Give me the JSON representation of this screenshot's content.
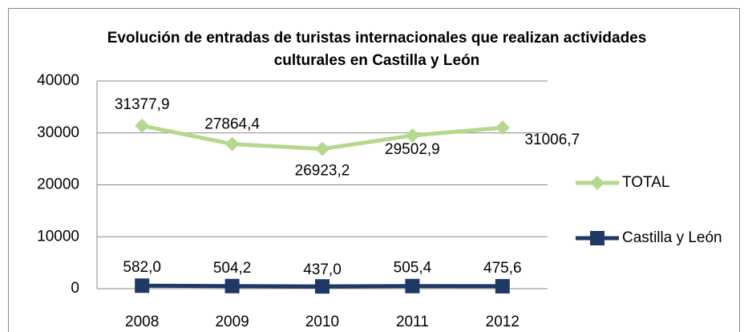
{
  "chart_data": {
    "type": "line",
    "title": "Evolución de entradas de turistas internacionales que realizan actividades culturales en Castilla y León",
    "categories": [
      "2008",
      "2009",
      "2010",
      "2011",
      "2012"
    ],
    "series": [
      {
        "name": "TOTAL",
        "color": "#b5d98c",
        "marker": "diamond",
        "values": [
          31377.9,
          27864.4,
          26923.2,
          29502.9,
          31006.7
        ],
        "value_labels": [
          "31377,9",
          "27864,4",
          "26923,2",
          "29502,9",
          "31006,7"
        ]
      },
      {
        "name": "Castilla y León",
        "color": "#1f3864",
        "marker": "square",
        "values": [
          582.0,
          504.2,
          437.0,
          505.4,
          475.6
        ],
        "value_labels": [
          "582,0",
          "504,2",
          "437,0",
          "505,4",
          "475,6"
        ]
      }
    ],
    "ylim": [
      0,
      40000
    ],
    "yticks": [
      0,
      10000,
      20000,
      30000,
      40000
    ],
    "grid": true,
    "legend": "right"
  }
}
